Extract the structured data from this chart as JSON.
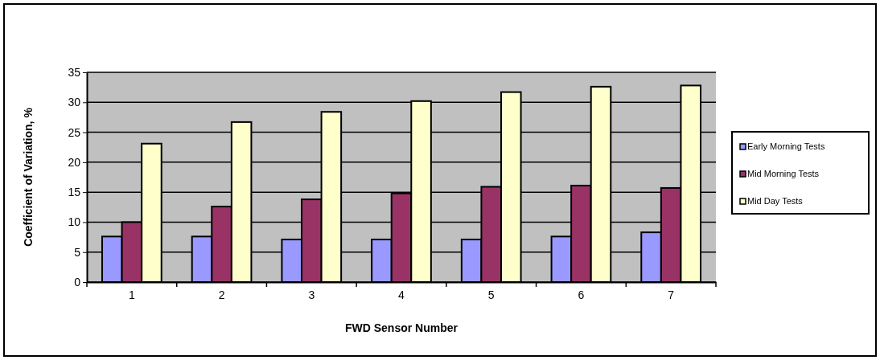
{
  "chart_data": {
    "type": "bar",
    "xlabel": "FWD Sensor Number",
    "ylabel": "Coefficient of Variation, %",
    "categories": [
      "1",
      "2",
      "3",
      "4",
      "5",
      "6",
      "7"
    ],
    "series": [
      {
        "name": "Early Morning Tests",
        "color": "#9999ff",
        "values": [
          7.6,
          7.6,
          7.1,
          7.1,
          7.1,
          7.6,
          8.3
        ]
      },
      {
        "name": "Mid Morning Tests",
        "color": "#993366",
        "values": [
          10.0,
          12.6,
          13.8,
          14.8,
          15.9,
          16.1,
          15.7
        ]
      },
      {
        "name": "Mid Day Tests",
        "color": "#ffffcc",
        "values": [
          23.1,
          26.7,
          28.4,
          30.2,
          31.7,
          32.6,
          32.8
        ]
      }
    ],
    "ylim": [
      0,
      35
    ],
    "yticks": [
      0,
      5,
      10,
      15,
      20,
      25,
      30,
      35
    ],
    "grid": "y",
    "legend": "right"
  }
}
